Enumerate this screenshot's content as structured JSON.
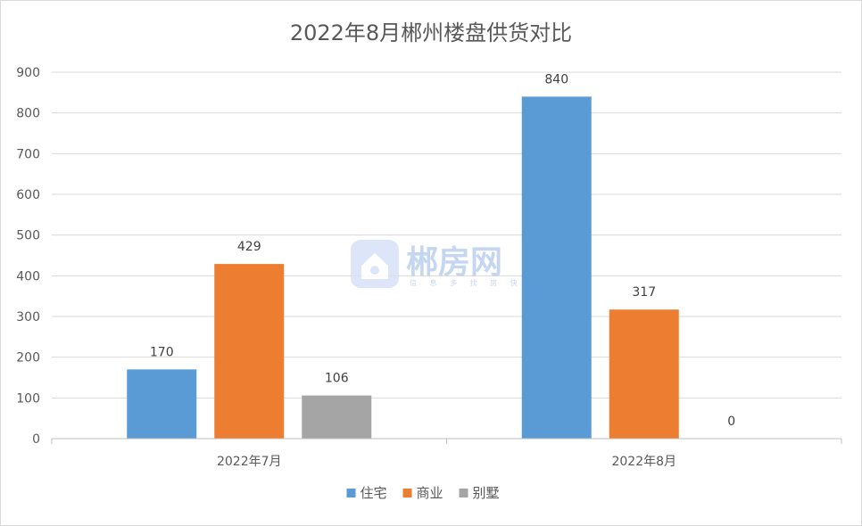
{
  "chart_data": {
    "type": "bar",
    "title": "2022年8月郴州楼盘供货对比",
    "categories": [
      "2022年7月",
      "2022年8月"
    ],
    "series": [
      {
        "name": "住宅",
        "color": "#5b9bd5",
        "values": [
          170,
          840
        ]
      },
      {
        "name": "商业",
        "color": "#ed7d31",
        "values": [
          429,
          317
        ]
      },
      {
        "name": "别墅",
        "color": "#a5a5a5",
        "values": [
          106,
          0
        ]
      }
    ],
    "ylim": [
      0,
      900
    ],
    "yticks": [
      0,
      100,
      200,
      300,
      400,
      500,
      600,
      700,
      800,
      900
    ],
    "grid": true,
    "legend_position": "bottom",
    "xlabel": "",
    "ylabel": ""
  },
  "watermark": {
    "icon": "house-logo-icon",
    "text": "郴房网",
    "subtext": "信 息 多 找 房 快"
  }
}
